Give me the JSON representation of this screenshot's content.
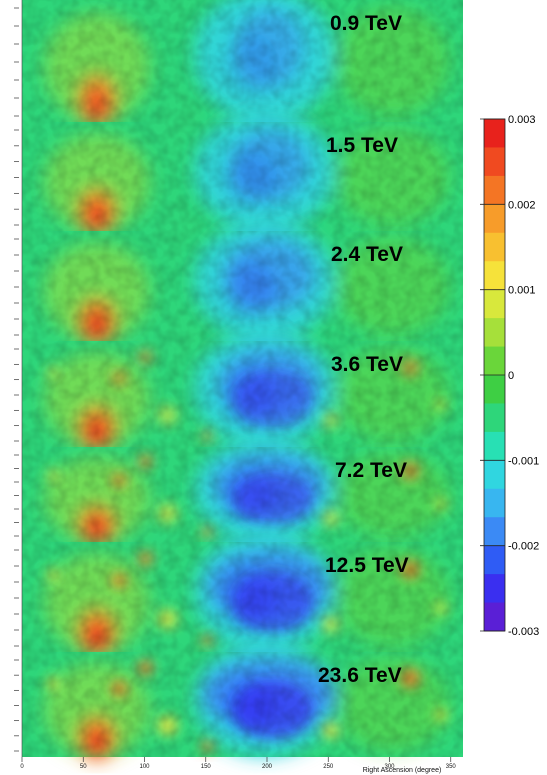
{
  "chart_data": {
    "type": "heatmap",
    "panels": [
      {
        "label": "0.9 TeV"
      },
      {
        "label": "1.5 TeV"
      },
      {
        "label": "2.4 TeV"
      },
      {
        "label": "3.6 TeV"
      },
      {
        "label": "7.2 TeV"
      },
      {
        "label": "12.5 TeV"
      },
      {
        "label": "23.6 TeV"
      }
    ],
    "xlabel": "Right Ascension (degree)",
    "x_ticks": [
      "0",
      "50",
      "100",
      "150",
      "200",
      "250",
      "300",
      "350"
    ],
    "xlim": [
      0,
      360
    ],
    "colorbar": {
      "range": [
        -0.003,
        0.003
      ],
      "ticks": [
        "0.003",
        "0.002",
        "0.001",
        "0",
        "-0.001",
        "-0.002",
        "-0.003"
      ],
      "tick_values": [
        0.003,
        0.002,
        0.001,
        0,
        -0.001,
        -0.002,
        -0.003
      ],
      "colors": [
        "#5a1fd6",
        "#3a2ff0",
        "#2f5cf5",
        "#3b8af5",
        "#38b6f0",
        "#30d6e0",
        "#28e0b4",
        "#2ed67a",
        "#3ecf44",
        "#6ad63a",
        "#a6e03a",
        "#d8e83c",
        "#f6e23a",
        "#f8c030",
        "#f79c2a",
        "#f47524",
        "#f04a20",
        "#e8221c"
      ]
    }
  }
}
